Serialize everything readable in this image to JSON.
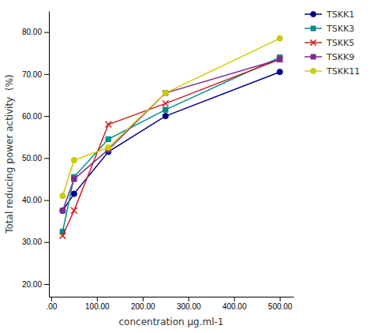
{
  "chart_data": {
    "type": "line",
    "xlabel": "concentration µg.ml-1",
    "ylabel": "Total reducing power activity  (%)",
    "x": [
      25,
      50,
      125,
      250,
      500
    ],
    "series": [
      {
        "name": "TSKK1",
        "color": "#00008B",
        "marker": "circle",
        "values": [
          37.5,
          41.5,
          51.5,
          60.0,
          70.5
        ]
      },
      {
        "name": "TSKK3",
        "color": "#008B8B",
        "marker": "square",
        "values": [
          32.5,
          45.5,
          54.5,
          61.5,
          74.0
        ]
      },
      {
        "name": "TSKK5",
        "color": "#CC2222",
        "marker": "x",
        "values": [
          31.5,
          37.5,
          58.0,
          63.0,
          73.5
        ]
      },
      {
        "name": "TSKK9",
        "color": "#7B2D8B",
        "marker": "square",
        "values": [
          37.5,
          45.0,
          52.0,
          65.5,
          73.5
        ]
      },
      {
        "name": "TSKK11",
        "color": "#CCCC00",
        "marker": "circle",
        "values": [
          41.0,
          49.5,
          52.5,
          65.5,
          78.5
        ]
      }
    ],
    "xlim": [
      -5,
      530
    ],
    "ylim": [
      17,
      85
    ],
    "xticks": [
      {
        "value": 0,
        "label": ".00"
      },
      {
        "value": 100,
        "label": "100.00"
      },
      {
        "value": 200,
        "label": "200.00"
      },
      {
        "value": 300,
        "label": "300.00"
      },
      {
        "value": 400,
        "label": "400.00"
      },
      {
        "value": 500,
        "label": "500.00"
      }
    ],
    "yticks": [
      {
        "value": 20,
        "label": "20.00"
      },
      {
        "value": 30,
        "label": "30.00"
      },
      {
        "value": 40,
        "label": "40.00"
      },
      {
        "value": 50,
        "label": "50.00"
      },
      {
        "value": 60,
        "label": "60.00"
      },
      {
        "value": 70,
        "label": "70.00"
      },
      {
        "value": 80,
        "label": "80.00"
      }
    ],
    "grid": false,
    "legend": "right"
  }
}
